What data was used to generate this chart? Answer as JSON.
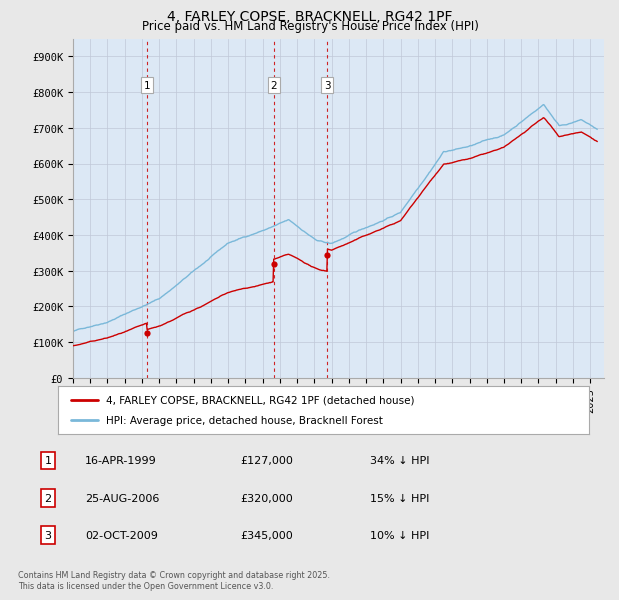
{
  "title": "4, FARLEY COPSE, BRACKNELL, RG42 1PF",
  "subtitle": "Price paid vs. HM Land Registry's House Price Index (HPI)",
  "hpi_color": "#7ab8d9",
  "price_color": "#cc0000",
  "ylim": [
    0,
    950000
  ],
  "yticks": [
    0,
    100000,
    200000,
    300000,
    400000,
    500000,
    600000,
    700000,
    800000,
    900000
  ],
  "ytick_labels": [
    "£0",
    "£100K",
    "£200K",
    "£300K",
    "£400K",
    "£500K",
    "£600K",
    "£700K",
    "£800K",
    "£900K"
  ],
  "transactions": [
    {
      "date": 1999.29,
      "price": 127000,
      "label": "1"
    },
    {
      "date": 2006.64,
      "price": 320000,
      "label": "2"
    },
    {
      "date": 2009.75,
      "price": 345000,
      "label": "3"
    }
  ],
  "transaction_vline_color": "#cc0000",
  "legend_line1": "4, FARLEY COPSE, BRACKNELL, RG42 1PF (detached house)",
  "legend_line2": "HPI: Average price, detached house, Bracknell Forest",
  "table_rows": [
    {
      "num": "1",
      "date": "16-APR-1999",
      "price": "£127,000",
      "hpi": "34% ↓ HPI"
    },
    {
      "num": "2",
      "date": "25-AUG-2006",
      "price": "£320,000",
      "hpi": "15% ↓ HPI"
    },
    {
      "num": "3",
      "date": "02-OCT-2009",
      "price": "£345,000",
      "hpi": "10% ↓ HPI"
    }
  ],
  "footnote": "Contains HM Land Registry data © Crown copyright and database right 2025.\nThis data is licensed under the Open Government Licence v3.0.",
  "background_color": "#e8e8e8",
  "plot_bg_color": "#dce8f5",
  "grid_color": "#c0c8d8"
}
